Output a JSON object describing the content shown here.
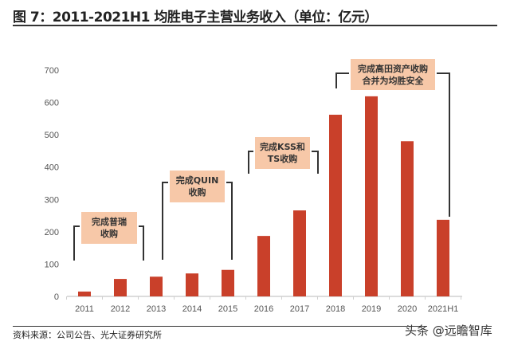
{
  "title": "图 7：2011-2021H1 均胜电子主营业务收入（单位：亿元）",
  "source": "资料来源：公司公告、光大证券研究所",
  "watermark": "头条 @远瞻智库",
  "colors": {
    "bar": "#c9402a",
    "annotation_box": "#f7c8a8",
    "bracket": "#333333",
    "axis": "#d0d0d0"
  },
  "chart_data": {
    "type": "bar",
    "title": "",
    "xlabel": "",
    "ylabel": "",
    "categories": [
      "2011",
      "2012",
      "2013",
      "2014",
      "2015",
      "2016",
      "2017",
      "2018",
      "2019",
      "2020",
      "2021H1"
    ],
    "values": [
      15,
      54,
      61,
      71,
      82,
      187,
      266,
      562,
      619,
      480,
      237
    ],
    "ylim": [
      0,
      700
    ],
    "yticks": [
      0,
      100,
      200,
      300,
      400,
      500,
      600,
      700
    ],
    "grid": false,
    "annotations": [
      {
        "lines": [
          "完成普瑞",
          "收购"
        ],
        "span": [
          "2011",
          "2012"
        ]
      },
      {
        "lines": [
          "完成QUIN",
          "收购"
        ],
        "span": [
          "2013",
          "2015"
        ]
      },
      {
        "lines": [
          "完成KSS和",
          "TS收购"
        ],
        "span": [
          "2016",
          "2017"
        ]
      },
      {
        "lines": [
          "完成高田资产收购",
          "合并为均胜安全"
        ],
        "span": [
          "2018",
          "2021H1"
        ]
      }
    ]
  }
}
